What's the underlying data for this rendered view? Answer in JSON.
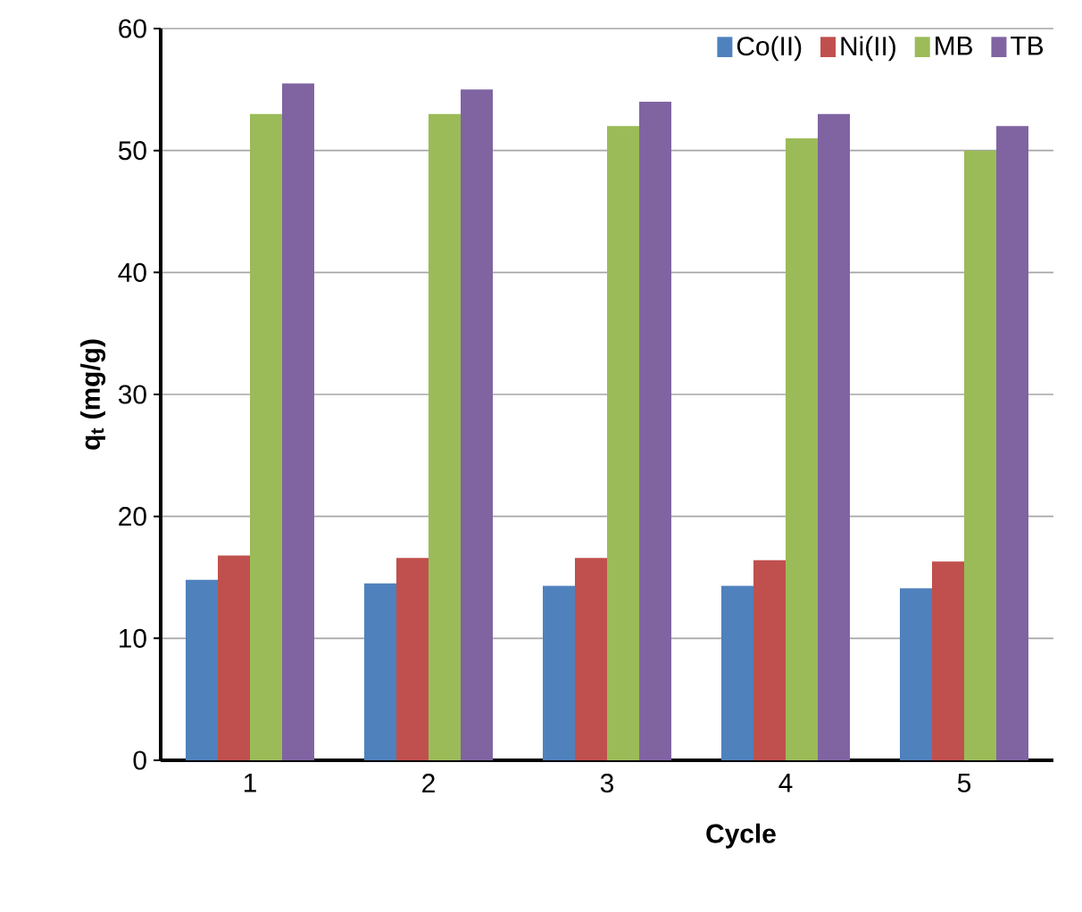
{
  "chart_data": {
    "type": "bar",
    "xlabel": "Cycle",
    "ylabel": "q$_{t}$ (mg/g)",
    "categories": [
      "1",
      "2",
      "3",
      "4",
      "5"
    ],
    "series": [
      {
        "name": "Co(II)",
        "color": "#4f81bd",
        "values": [
          14.8,
          14.5,
          14.3,
          14.3,
          14.1
        ]
      },
      {
        "name": "Ni(II)",
        "color": "#c0504d",
        "values": [
          16.8,
          16.6,
          16.6,
          16.4,
          16.3
        ]
      },
      {
        "name": "MB",
        "color": "#9bbb59",
        "values": [
          53.0,
          53.0,
          52.0,
          51.0,
          50.0
        ]
      },
      {
        "name": "TB",
        "color": "#8064a2",
        "values": [
          55.5,
          55.0,
          54.0,
          53.0,
          52.0
        ]
      }
    ],
    "ylim": [
      0,
      60
    ],
    "yticks": [
      0,
      10,
      20,
      30,
      40,
      50,
      60
    ],
    "grid": "y",
    "legend": "top right"
  }
}
